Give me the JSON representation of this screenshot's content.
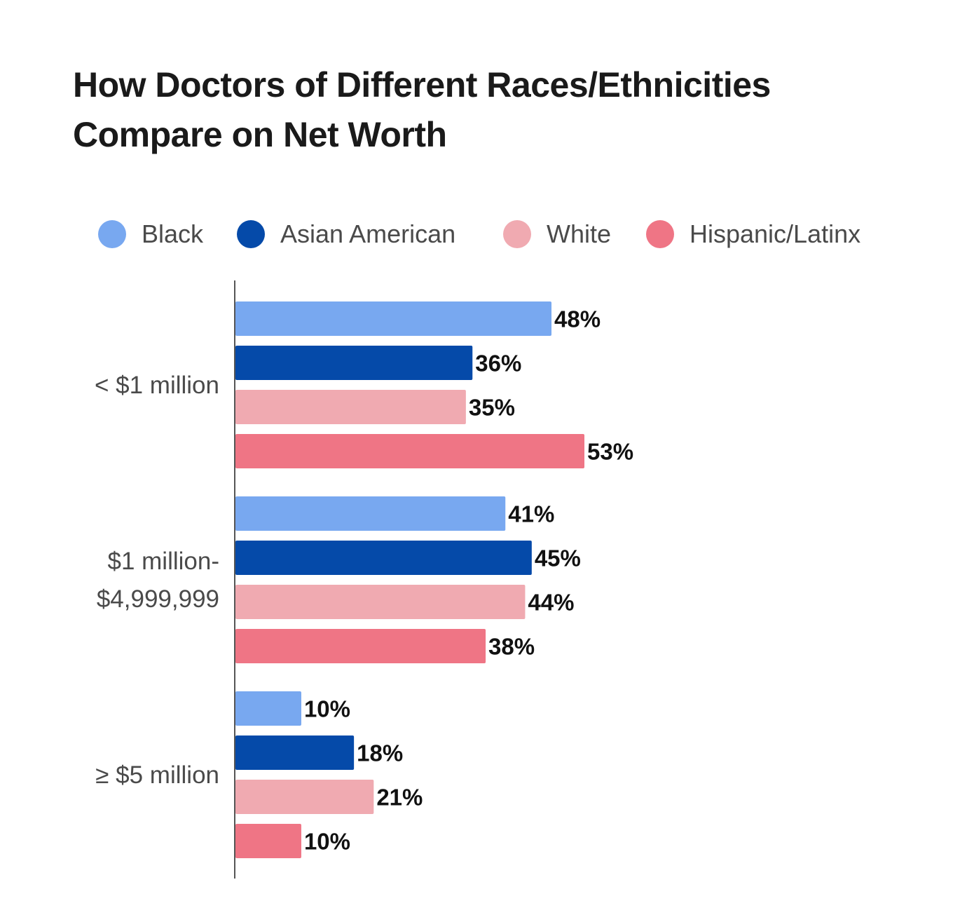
{
  "chart_data": {
    "type": "bar",
    "orientation": "horizontal",
    "title_lines": [
      "How Doctors of Different Races/Ethnicities",
      "Compare on Net Worth"
    ],
    "categories": [
      [
        "< $1 million"
      ],
      [
        "$1 million-",
        "$4,999,999"
      ],
      [
        "≥ $5 million"
      ]
    ],
    "series": [
      {
        "name": "Black",
        "color": "#78a8f0",
        "values": [
          48,
          41,
          10
        ],
        "labels": [
          "48%",
          "41%",
          "10%"
        ]
      },
      {
        "name": "Asian American",
        "color": "#054aa9",
        "values": [
          36,
          45,
          18
        ],
        "labels": [
          "36%",
          "45%",
          "18%"
        ]
      },
      {
        "name": "White",
        "color": "#f0aab1",
        "values": [
          35,
          44,
          21
        ],
        "labels": [
          "35%",
          "44%",
          "21%"
        ]
      },
      {
        "name": "Hispanic/Latinx",
        "color": "#ef7585",
        "values": [
          53,
          38,
          10
        ],
        "labels": [
          "53%",
          "38%",
          "10%"
        ]
      }
    ],
    "value_unit": "%",
    "xlim": [
      0,
      53
    ],
    "grid": false,
    "legend_position": "top"
  }
}
